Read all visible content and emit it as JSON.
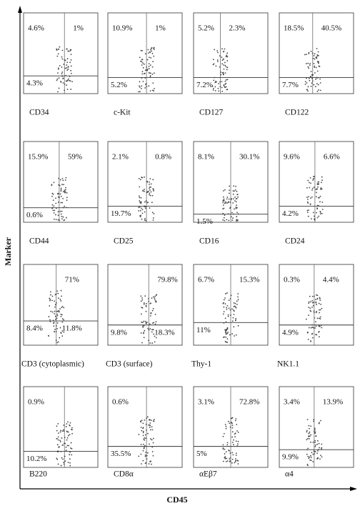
{
  "axes": {
    "y_label": "Marker",
    "x_label": "CD45"
  },
  "panels": [
    {
      "label": "CD34",
      "quadrants": {
        "upper_left": "4.6%",
        "upper_right": "1%",
        "lower_left": "4.3%"
      }
    },
    {
      "label": "c-Kit",
      "quadrants": {
        "upper_left": "10.9%",
        "upper_right": "1%",
        "lower_left": "5.2%"
      }
    },
    {
      "label": "CD127",
      "quadrants": {
        "upper_left": "5.2%",
        "upper_right": "2.3%",
        "lower_left": "7.2%"
      }
    },
    {
      "label": "CD122",
      "quadrants": {
        "upper_left": "18.5%",
        "upper_right": "40.5%",
        "lower_left": "7.7%"
      }
    },
    {
      "label": "CD44",
      "quadrants": {
        "upper_left": "15.9%",
        "upper_right": "59%",
        "lower_left": "0.6%"
      }
    },
    {
      "label": "CD25",
      "quadrants": {
        "upper_left": "2.1%",
        "upper_right": "0.8%",
        "lower_left": "19.7%"
      }
    },
    {
      "label": "CD16",
      "quadrants": {
        "upper_left": "8.1%",
        "upper_right": "30.1%",
        "lower_left": "1.5%"
      }
    },
    {
      "label": "CD24",
      "quadrants": {
        "upper_left": "9.6%",
        "upper_right": "6.6%",
        "lower_left": "4.2%"
      }
    },
    {
      "label": "CD3 (cytoplasmic)",
      "quadrants": {
        "upper_right": "71%",
        "lower_left": "8.4%",
        "lower_right": "11.8%"
      }
    },
    {
      "label": "CD3 (surface)",
      "quadrants": {
        "upper_right": "79.8%",
        "lower_left": "9.8%",
        "lower_right": "18.3%"
      }
    },
    {
      "label": "Thy-1",
      "quadrants": {
        "upper_left": "6.7%",
        "upper_right": "15.3%",
        "lower_left": "11%"
      }
    },
    {
      "label": "NK1.1",
      "quadrants": {
        "upper_left": "0.3%",
        "upper_right": "4.4%",
        "lower_left": "4.9%"
      }
    },
    {
      "label": "B220",
      "quadrants": {
        "upper_left": "0.9%",
        "lower_left": "10.2%"
      }
    },
    {
      "label": "CD8α",
      "quadrants": {
        "upper_left": "0.6%",
        "lower_left": "35.5%"
      }
    },
    {
      "label": "αEβ7",
      "quadrants": {
        "upper_left": "3.1%",
        "upper_right": "72.8%",
        "lower_left": "5%"
      }
    },
    {
      "label": "α4",
      "quadrants": {
        "upper_left": "3.4%",
        "upper_right": "13.9%",
        "lower_left": "9.9%"
      }
    }
  ]
}
